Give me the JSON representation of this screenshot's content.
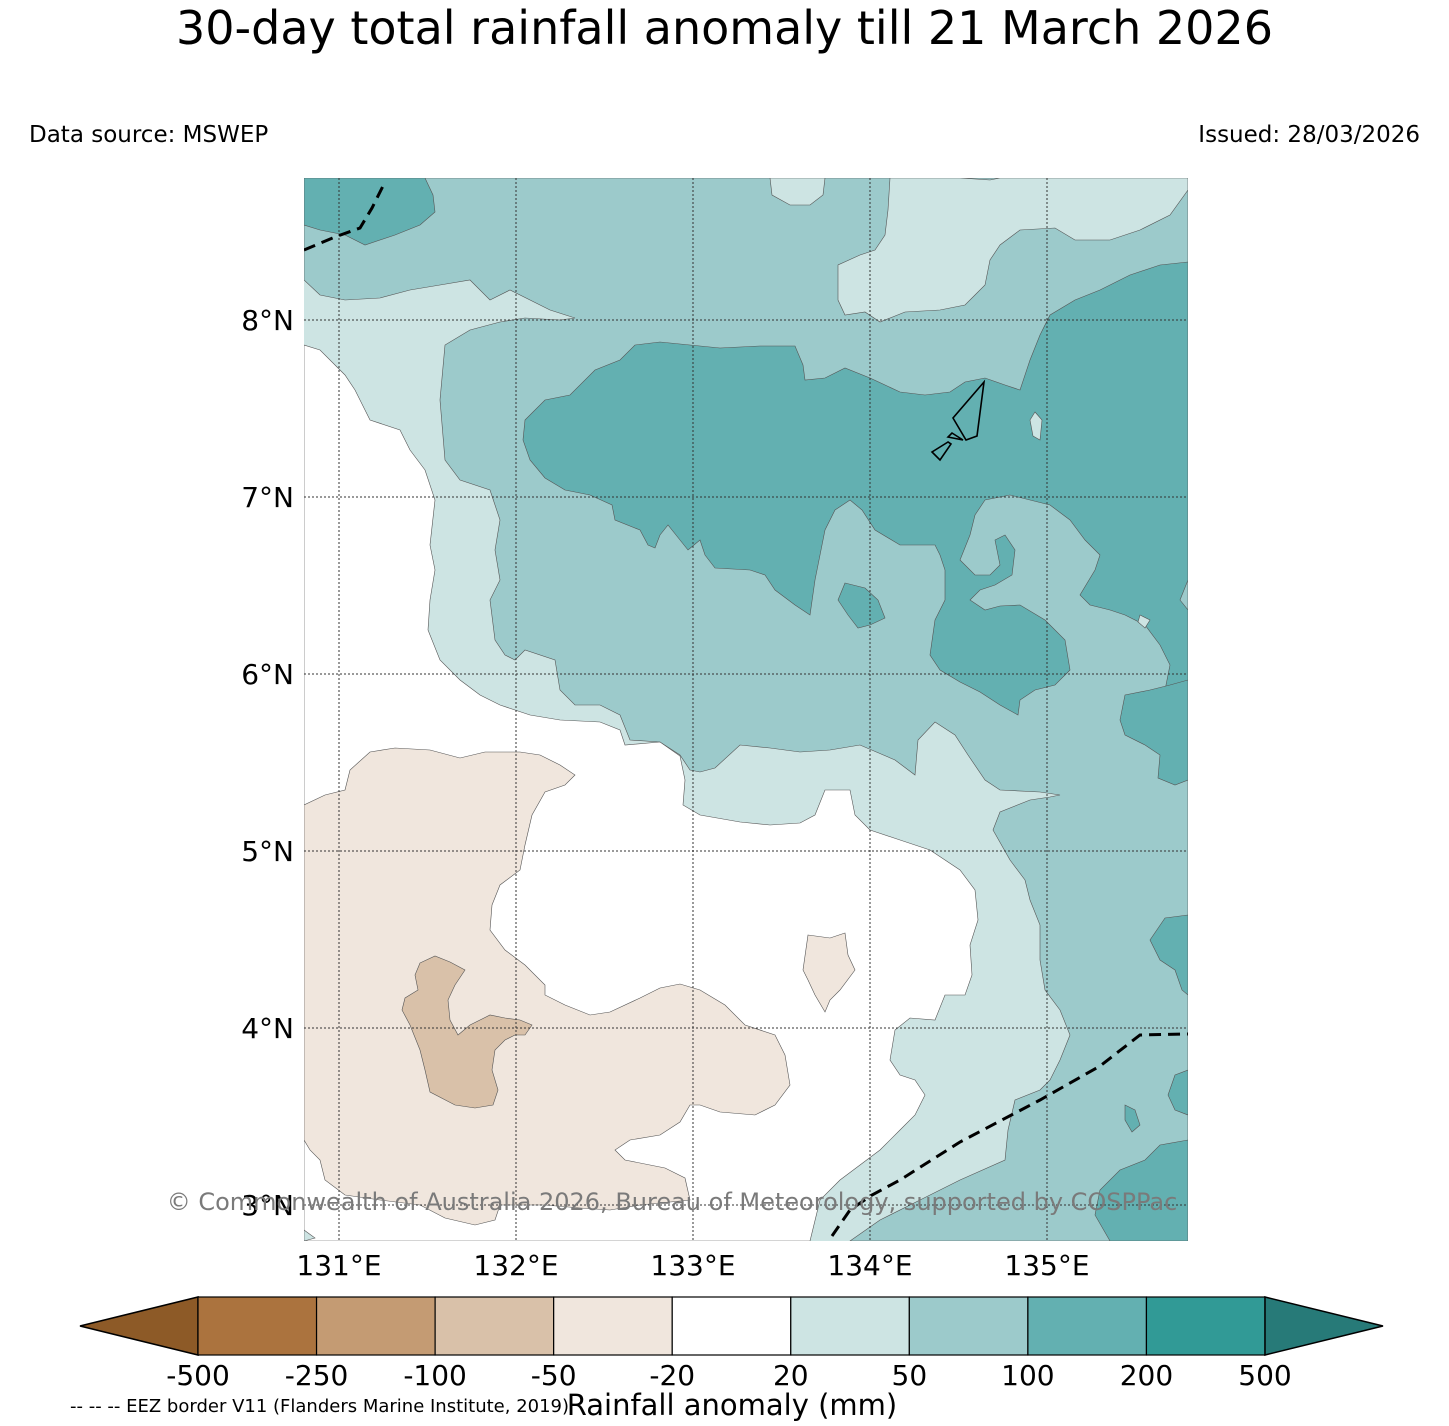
{
  "title": "30-day total rainfall anomaly till 21 March 2026",
  "data_source": "Data source: MSWEP",
  "issued": "Issued: 28/03/2026",
  "copyright": "© Commonwealth of Australia 2026, Bureau of Meteorology, supported by COSPPac",
  "eez_note": "-- -- -- EEZ border V11 (Flanders Marine Institute, 2019)",
  "latitude_labels": [
    "8°N",
    "7°N",
    "6°N",
    "5°N",
    "4°N",
    "3°N"
  ],
  "longitude_labels": [
    "131°E",
    "132°E",
    "133°E",
    "134°E",
    "135°E"
  ],
  "colorbar": {
    "label": "Rainfall anomaly (mm)",
    "ticks": [
      "-500",
      "-250",
      "-100",
      "-50",
      "-20",
      "20",
      "50",
      "100",
      "200",
      "500"
    ],
    "colors": [
      "#8d5a27",
      "#ab733e",
      "#c49b73",
      "#d9c1a9",
      "#f0e6dd",
      "#ffffff",
      "#cde4e3",
      "#9ccacb",
      "#63b0b1",
      "#319a96",
      "#277a78"
    ]
  },
  "legend_colors": {
    "-50_to_-20": "#f0e6dd",
    "-100_to_-50": "#d9c1a9",
    "20_to_50": "#cde4e3",
    "50_to_100": "#9ccacb",
    "100_to_200": "#63b0b1"
  }
}
